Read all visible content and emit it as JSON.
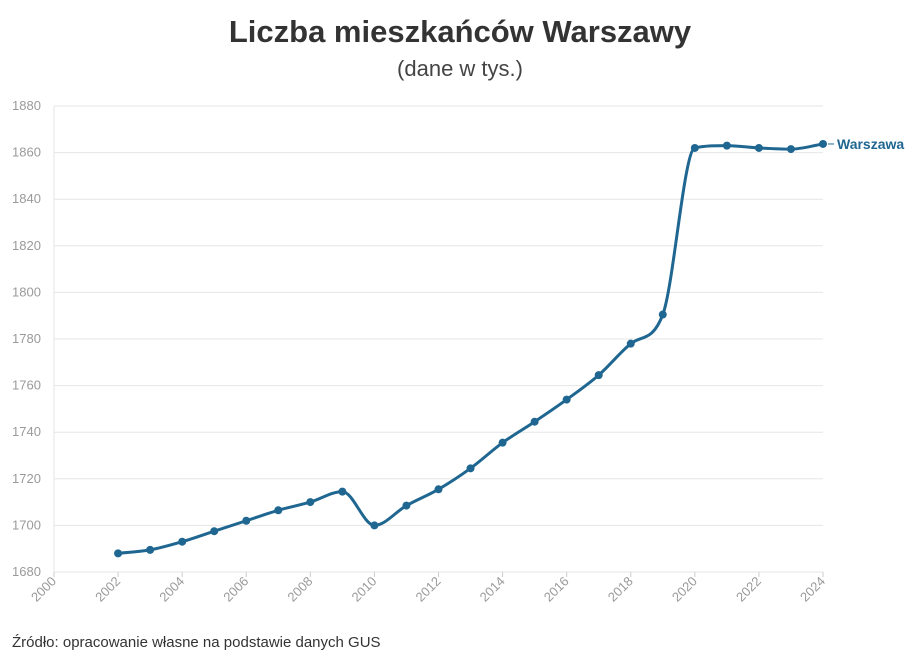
{
  "header": {
    "title": "Liczba mieszkańców Warszawy",
    "subtitle": "(dane w tys.)"
  },
  "footer": {
    "source": "Źródło: opracowanie własne na podstawie danych GUS"
  },
  "chart_data": {
    "type": "line",
    "title": "Liczba mieszkańców Warszawy",
    "subtitle": "(dane w tys.)",
    "xlabel": "",
    "ylabel": "",
    "xlim": [
      2000,
      2024
    ],
    "ylim": [
      1680,
      1880
    ],
    "x_ticks": [
      2000,
      2002,
      2004,
      2006,
      2008,
      2010,
      2012,
      2014,
      2016,
      2018,
      2020,
      2022,
      2024
    ],
    "y_ticks": [
      1680,
      1700,
      1720,
      1740,
      1760,
      1780,
      1800,
      1820,
      1840,
      1860,
      1880
    ],
    "grid": true,
    "legend": "direct label at line end",
    "series": [
      {
        "name": "Warszawa",
        "color": "#1f6691",
        "x": [
          2002,
          2003,
          2004,
          2005,
          2006,
          2007,
          2008,
          2009,
          2010,
          2011,
          2012,
          2013,
          2014,
          2015,
          2016,
          2017,
          2018,
          2019,
          2020,
          2021,
          2022,
          2023,
          2024
        ],
        "values": [
          1688,
          1689.5,
          1693,
          1697.5,
          1702,
          1706.5,
          1710,
          1714.5,
          1700,
          1708.5,
          1715.5,
          1724.5,
          1735.5,
          1744.5,
          1754,
          1764.5,
          1778,
          1790.5,
          1862,
          1863,
          1862,
          1861.5,
          1863.7
        ]
      }
    ]
  }
}
